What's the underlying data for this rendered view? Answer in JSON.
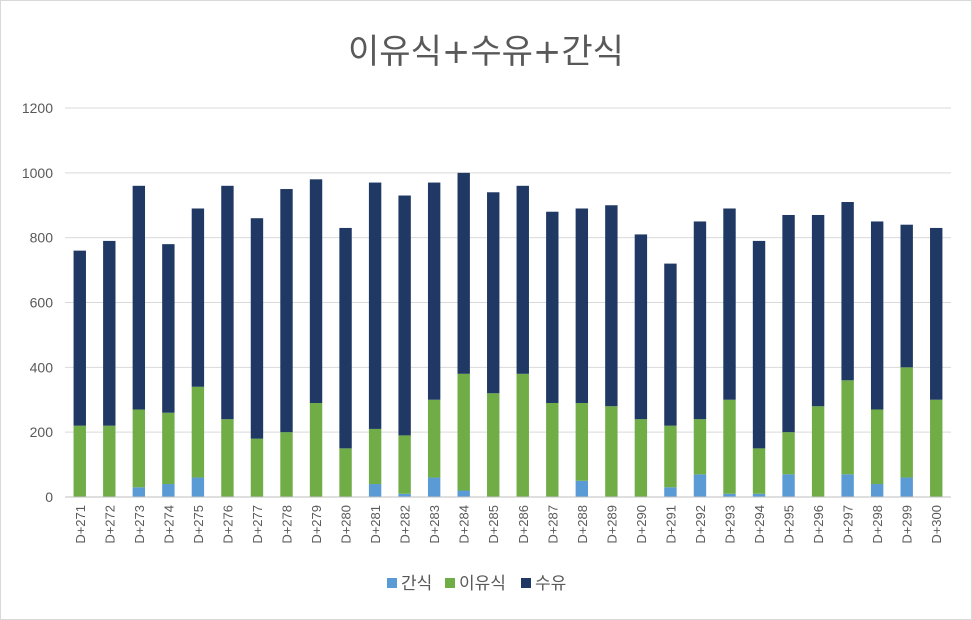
{
  "chart_data": {
    "type": "bar",
    "stacked": true,
    "title": "이유식+수유+간식",
    "xlabel": "",
    "ylabel": "",
    "ylim": [
      0,
      1200
    ],
    "yticks": [
      0,
      200,
      400,
      600,
      800,
      1000,
      1200
    ],
    "grid": true,
    "legend_position": "bottom",
    "categories": [
      "D+271",
      "D+272",
      "D+273",
      "D+274",
      "D+275",
      "D+276",
      "D+277",
      "D+278",
      "D+279",
      "D+280",
      "D+281",
      "D+282",
      "D+283",
      "D+284",
      "D+285",
      "D+286",
      "D+287",
      "D+288",
      "D+289",
      "D+290",
      "D+291",
      "D+292",
      "D+293",
      "D+294",
      "D+295",
      "D+296",
      "D+297",
      "D+298",
      "D+299",
      "D+300"
    ],
    "series": [
      {
        "name": "간식",
        "color": "#5b9bd5",
        "values": [
          0,
          0,
          30,
          40,
          60,
          0,
          0,
          0,
          0,
          0,
          40,
          10,
          60,
          20,
          0,
          0,
          0,
          50,
          0,
          0,
          30,
          70,
          10,
          10,
          70,
          0,
          70,
          40,
          60,
          0
        ]
      },
      {
        "name": "이유식",
        "color": "#70ad47",
        "values": [
          220,
          220,
          240,
          220,
          280,
          240,
          180,
          200,
          290,
          150,
          170,
          180,
          240,
          360,
          320,
          380,
          290,
          240,
          280,
          240,
          190,
          170,
          290,
          140,
          130,
          280,
          290,
          230,
          340,
          300
        ]
      },
      {
        "name": "수유",
        "color": "#203864",
        "values": [
          540,
          570,
          690,
          520,
          550,
          720,
          680,
          750,
          690,
          680,
          760,
          740,
          670,
          620,
          620,
          580,
          590,
          600,
          620,
          570,
          500,
          610,
          590,
          640,
          670,
          590,
          550,
          580,
          440,
          530
        ]
      }
    ]
  }
}
